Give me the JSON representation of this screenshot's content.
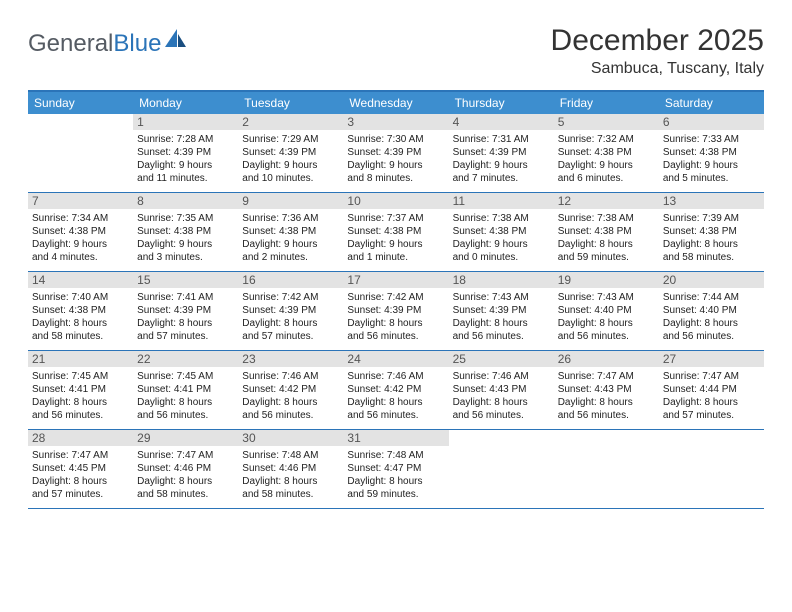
{
  "logo": {
    "word1": "General",
    "word2": "Blue"
  },
  "title": "December 2025",
  "location": "Sambuca, Tuscany, Italy",
  "colors": {
    "header_bar": "#3d8ecf",
    "border": "#2b74b8",
    "daynum_bg": "#e3e3e3",
    "logo_gray": "#555b63",
    "logo_blue": "#2b74b8"
  },
  "days_of_week": [
    "Sunday",
    "Monday",
    "Tuesday",
    "Wednesday",
    "Thursday",
    "Friday",
    "Saturday"
  ],
  "weeks": [
    [
      {
        "n": "",
        "sunrise": "",
        "sunset": "",
        "daylight1": "",
        "daylight2": ""
      },
      {
        "n": "1",
        "sunrise": "Sunrise: 7:28 AM",
        "sunset": "Sunset: 4:39 PM",
        "daylight1": "Daylight: 9 hours",
        "daylight2": "and 11 minutes."
      },
      {
        "n": "2",
        "sunrise": "Sunrise: 7:29 AM",
        "sunset": "Sunset: 4:39 PM",
        "daylight1": "Daylight: 9 hours",
        "daylight2": "and 10 minutes."
      },
      {
        "n": "3",
        "sunrise": "Sunrise: 7:30 AM",
        "sunset": "Sunset: 4:39 PM",
        "daylight1": "Daylight: 9 hours",
        "daylight2": "and 8 minutes."
      },
      {
        "n": "4",
        "sunrise": "Sunrise: 7:31 AM",
        "sunset": "Sunset: 4:39 PM",
        "daylight1": "Daylight: 9 hours",
        "daylight2": "and 7 minutes."
      },
      {
        "n": "5",
        "sunrise": "Sunrise: 7:32 AM",
        "sunset": "Sunset: 4:38 PM",
        "daylight1": "Daylight: 9 hours",
        "daylight2": "and 6 minutes."
      },
      {
        "n": "6",
        "sunrise": "Sunrise: 7:33 AM",
        "sunset": "Sunset: 4:38 PM",
        "daylight1": "Daylight: 9 hours",
        "daylight2": "and 5 minutes."
      }
    ],
    [
      {
        "n": "7",
        "sunrise": "Sunrise: 7:34 AM",
        "sunset": "Sunset: 4:38 PM",
        "daylight1": "Daylight: 9 hours",
        "daylight2": "and 4 minutes."
      },
      {
        "n": "8",
        "sunrise": "Sunrise: 7:35 AM",
        "sunset": "Sunset: 4:38 PM",
        "daylight1": "Daylight: 9 hours",
        "daylight2": "and 3 minutes."
      },
      {
        "n": "9",
        "sunrise": "Sunrise: 7:36 AM",
        "sunset": "Sunset: 4:38 PM",
        "daylight1": "Daylight: 9 hours",
        "daylight2": "and 2 minutes."
      },
      {
        "n": "10",
        "sunrise": "Sunrise: 7:37 AM",
        "sunset": "Sunset: 4:38 PM",
        "daylight1": "Daylight: 9 hours",
        "daylight2": "and 1 minute."
      },
      {
        "n": "11",
        "sunrise": "Sunrise: 7:38 AM",
        "sunset": "Sunset: 4:38 PM",
        "daylight1": "Daylight: 9 hours",
        "daylight2": "and 0 minutes."
      },
      {
        "n": "12",
        "sunrise": "Sunrise: 7:38 AM",
        "sunset": "Sunset: 4:38 PM",
        "daylight1": "Daylight: 8 hours",
        "daylight2": "and 59 minutes."
      },
      {
        "n": "13",
        "sunrise": "Sunrise: 7:39 AM",
        "sunset": "Sunset: 4:38 PM",
        "daylight1": "Daylight: 8 hours",
        "daylight2": "and 58 minutes."
      }
    ],
    [
      {
        "n": "14",
        "sunrise": "Sunrise: 7:40 AM",
        "sunset": "Sunset: 4:38 PM",
        "daylight1": "Daylight: 8 hours",
        "daylight2": "and 58 minutes."
      },
      {
        "n": "15",
        "sunrise": "Sunrise: 7:41 AM",
        "sunset": "Sunset: 4:39 PM",
        "daylight1": "Daylight: 8 hours",
        "daylight2": "and 57 minutes."
      },
      {
        "n": "16",
        "sunrise": "Sunrise: 7:42 AM",
        "sunset": "Sunset: 4:39 PM",
        "daylight1": "Daylight: 8 hours",
        "daylight2": "and 57 minutes."
      },
      {
        "n": "17",
        "sunrise": "Sunrise: 7:42 AM",
        "sunset": "Sunset: 4:39 PM",
        "daylight1": "Daylight: 8 hours",
        "daylight2": "and 56 minutes."
      },
      {
        "n": "18",
        "sunrise": "Sunrise: 7:43 AM",
        "sunset": "Sunset: 4:39 PM",
        "daylight1": "Daylight: 8 hours",
        "daylight2": "and 56 minutes."
      },
      {
        "n": "19",
        "sunrise": "Sunrise: 7:43 AM",
        "sunset": "Sunset: 4:40 PM",
        "daylight1": "Daylight: 8 hours",
        "daylight2": "and 56 minutes."
      },
      {
        "n": "20",
        "sunrise": "Sunrise: 7:44 AM",
        "sunset": "Sunset: 4:40 PM",
        "daylight1": "Daylight: 8 hours",
        "daylight2": "and 56 minutes."
      }
    ],
    [
      {
        "n": "21",
        "sunrise": "Sunrise: 7:45 AM",
        "sunset": "Sunset: 4:41 PM",
        "daylight1": "Daylight: 8 hours",
        "daylight2": "and 56 minutes."
      },
      {
        "n": "22",
        "sunrise": "Sunrise: 7:45 AM",
        "sunset": "Sunset: 4:41 PM",
        "daylight1": "Daylight: 8 hours",
        "daylight2": "and 56 minutes."
      },
      {
        "n": "23",
        "sunrise": "Sunrise: 7:46 AM",
        "sunset": "Sunset: 4:42 PM",
        "daylight1": "Daylight: 8 hours",
        "daylight2": "and 56 minutes."
      },
      {
        "n": "24",
        "sunrise": "Sunrise: 7:46 AM",
        "sunset": "Sunset: 4:42 PM",
        "daylight1": "Daylight: 8 hours",
        "daylight2": "and 56 minutes."
      },
      {
        "n": "25",
        "sunrise": "Sunrise: 7:46 AM",
        "sunset": "Sunset: 4:43 PM",
        "daylight1": "Daylight: 8 hours",
        "daylight2": "and 56 minutes."
      },
      {
        "n": "26",
        "sunrise": "Sunrise: 7:47 AM",
        "sunset": "Sunset: 4:43 PM",
        "daylight1": "Daylight: 8 hours",
        "daylight2": "and 56 minutes."
      },
      {
        "n": "27",
        "sunrise": "Sunrise: 7:47 AM",
        "sunset": "Sunset: 4:44 PM",
        "daylight1": "Daylight: 8 hours",
        "daylight2": "and 57 minutes."
      }
    ],
    [
      {
        "n": "28",
        "sunrise": "Sunrise: 7:47 AM",
        "sunset": "Sunset: 4:45 PM",
        "daylight1": "Daylight: 8 hours",
        "daylight2": "and 57 minutes."
      },
      {
        "n": "29",
        "sunrise": "Sunrise: 7:47 AM",
        "sunset": "Sunset: 4:46 PM",
        "daylight1": "Daylight: 8 hours",
        "daylight2": "and 58 minutes."
      },
      {
        "n": "30",
        "sunrise": "Sunrise: 7:48 AM",
        "sunset": "Sunset: 4:46 PM",
        "daylight1": "Daylight: 8 hours",
        "daylight2": "and 58 minutes."
      },
      {
        "n": "31",
        "sunrise": "Sunrise: 7:48 AM",
        "sunset": "Sunset: 4:47 PM",
        "daylight1": "Daylight: 8 hours",
        "daylight2": "and 59 minutes."
      },
      {
        "n": "",
        "sunrise": "",
        "sunset": "",
        "daylight1": "",
        "daylight2": ""
      },
      {
        "n": "",
        "sunrise": "",
        "sunset": "",
        "daylight1": "",
        "daylight2": ""
      },
      {
        "n": "",
        "sunrise": "",
        "sunset": "",
        "daylight1": "",
        "daylight2": ""
      }
    ]
  ]
}
